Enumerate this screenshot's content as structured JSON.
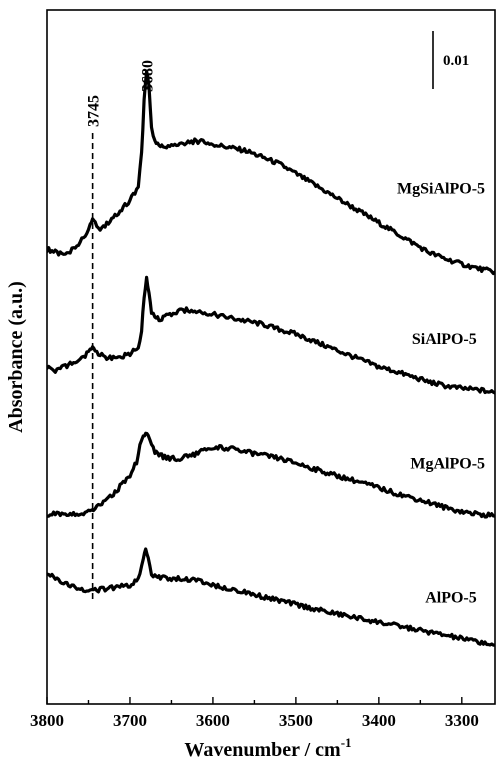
{
  "chart_data": {
    "type": "line",
    "xlabel": "Wavenumber / cm",
    "xlabel_superscript": "-1",
    "ylabel": "Absorbance (a.u.)",
    "xlim": [
      3800,
      3260
    ],
    "x_reversed": true,
    "x_ticks": [
      3800,
      3700,
      3600,
      3500,
      3400,
      3300
    ],
    "y_ticks_labeled": false,
    "grid": false,
    "scale_bar": {
      "label": "0.01",
      "value": 0.01
    },
    "reference_lines": [
      {
        "x": 3745,
        "label": "3745",
        "style": "dashed"
      }
    ],
    "peak_labels": [
      {
        "x": 3680,
        "label": "3680"
      }
    ],
    "series": [
      {
        "name": "MgSiAlPO-5",
        "offset": 0.066,
        "x": [
          3800,
          3790,
          3780,
          3770,
          3760,
          3752,
          3748,
          3745,
          3742,
          3738,
          3730,
          3720,
          3710,
          3700,
          3690,
          3686,
          3683,
          3680,
          3677,
          3674,
          3670,
          3665,
          3660,
          3650,
          3640,
          3630,
          3620,
          3610,
          3600,
          3580,
          3560,
          3540,
          3520,
          3500,
          3480,
          3460,
          3440,
          3420,
          3400,
          3380,
          3360,
          3340,
          3320,
          3300,
          3280,
          3260
        ],
        "y": [
          0.0035,
          0.003,
          0.0025,
          0.0033,
          0.0045,
          0.006,
          0.0075,
          0.0082,
          0.0075,
          0.0065,
          0.007,
          0.0085,
          0.0095,
          0.011,
          0.013,
          0.018,
          0.026,
          0.031,
          0.028,
          0.022,
          0.02,
          0.0195,
          0.019,
          0.0192,
          0.0195,
          0.0198,
          0.02,
          0.0198,
          0.0195,
          0.019,
          0.0185,
          0.0175,
          0.0165,
          0.015,
          0.0135,
          0.012,
          0.0105,
          0.009,
          0.0075,
          0.006,
          0.0045,
          0.003,
          0.002,
          0.0012,
          0.0005,
          0.0
        ]
      },
      {
        "name": "SiAlPO-5",
        "offset": 0.048,
        "x": [
          3800,
          3790,
          3780,
          3770,
          3760,
          3752,
          3748,
          3745,
          3742,
          3738,
          3730,
          3720,
          3710,
          3700,
          3690,
          3686,
          3683,
          3680,
          3677,
          3674,
          3670,
          3665,
          3660,
          3650,
          3640,
          3630,
          3620,
          3610,
          3600,
          3580,
          3560,
          3540,
          3520,
          3500,
          3480,
          3460,
          3440,
          3420,
          3400,
          3380,
          3360,
          3340,
          3320,
          3300,
          3280,
          3260
        ],
        "y": [
          0.0035,
          0.003,
          0.0035,
          0.004,
          0.0045,
          0.0055,
          0.0062,
          0.0065,
          0.0062,
          0.0055,
          0.005,
          0.0048,
          0.005,
          0.0055,
          0.0065,
          0.009,
          0.014,
          0.017,
          0.015,
          0.012,
          0.011,
          0.0108,
          0.011,
          0.0115,
          0.012,
          0.0122,
          0.012,
          0.0118,
          0.0115,
          0.011,
          0.0105,
          0.01,
          0.0092,
          0.0085,
          0.0075,
          0.0065,
          0.0055,
          0.0045,
          0.0035,
          0.0028,
          0.002,
          0.0012,
          0.0006,
          0.0002,
          0.0,
          -0.0005
        ]
      },
      {
        "name": "MgAlPO-5",
        "offset": 0.029,
        "x": [
          3800,
          3790,
          3780,
          3770,
          3760,
          3750,
          3740,
          3730,
          3720,
          3710,
          3700,
          3692,
          3688,
          3684,
          3681,
          3678,
          3674,
          3670,
          3665,
          3660,
          3650,
          3640,
          3630,
          3620,
          3610,
          3600,
          3590,
          3580,
          3570,
          3560,
          3540,
          3520,
          3500,
          3480,
          3460,
          3440,
          3420,
          3400,
          3380,
          3360,
          3340,
          3320,
          3300,
          3280,
          3260
        ],
        "y": [
          0.0,
          0.0,
          0.0,
          0.0002,
          0.0,
          0.0005,
          0.001,
          0.002,
          0.003,
          0.0045,
          0.006,
          0.008,
          0.0105,
          0.012,
          0.0125,
          0.012,
          0.0105,
          0.0095,
          0.009,
          0.0088,
          0.0085,
          0.0085,
          0.0088,
          0.0092,
          0.0098,
          0.01,
          0.0102,
          0.01,
          0.0098,
          0.0095,
          0.009,
          0.0085,
          0.0078,
          0.007,
          0.0062,
          0.0055,
          0.0048,
          0.004,
          0.0032,
          0.0025,
          0.0018,
          0.001,
          0.0004,
          0.0,
          -0.0003
        ]
      },
      {
        "name": "AlPO-5",
        "offset": 0.013,
        "x": [
          3800,
          3790,
          3780,
          3770,
          3760,
          3750,
          3740,
          3730,
          3720,
          3710,
          3700,
          3692,
          3688,
          3684,
          3681,
          3678,
          3674,
          3670,
          3665,
          3660,
          3650,
          3640,
          3630,
          3620,
          3610,
          3600,
          3590,
          3580,
          3570,
          3560,
          3540,
          3520,
          3500,
          3480,
          3460,
          3440,
          3420,
          3400,
          3380,
          3360,
          3340,
          3320,
          3300,
          3280,
          3260
        ],
        "y": [
          0.007,
          0.0062,
          0.0056,
          0.005,
          0.0046,
          0.0044,
          0.0044,
          0.0046,
          0.0048,
          0.005,
          0.0052,
          0.0058,
          0.007,
          0.009,
          0.0105,
          0.009,
          0.0068,
          0.0065,
          0.0064,
          0.0063,
          0.0062,
          0.0062,
          0.006,
          0.0058,
          0.0056,
          0.0052,
          0.0049,
          0.0046,
          0.0043,
          0.004,
          0.0034,
          0.0028,
          0.0022,
          0.0016,
          0.001,
          0.0005,
          0.0,
          -0.0005,
          -0.001,
          -0.0015,
          -0.002,
          -0.0025,
          -0.003,
          -0.0035,
          -0.004
        ]
      }
    ]
  }
}
